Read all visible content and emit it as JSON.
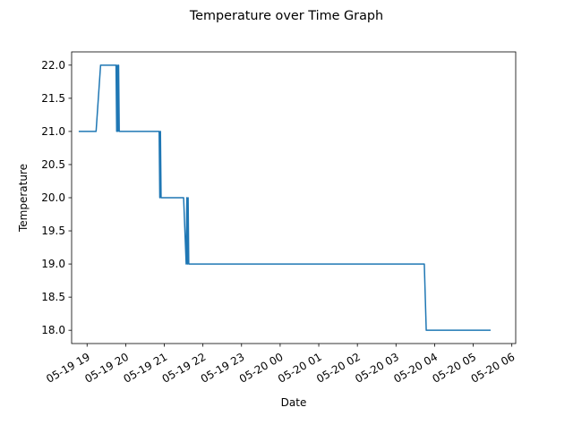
{
  "chart_data": {
    "type": "line",
    "title": "Temperature over Time Graph",
    "xlabel": "Date",
    "ylabel": "Temperature",
    "x_ticks": [
      "05-19 19",
      "05-19 20",
      "05-19 21",
      "05-19 22",
      "05-19 23",
      "05-20 00",
      "05-20 01",
      "05-20 02",
      "05-20 03",
      "05-20 04",
      "05-20 05",
      "05-20 06"
    ],
    "y_ticks": [
      "18.0",
      "18.5",
      "19.0",
      "19.5",
      "20.0",
      "20.5",
      "21.0",
      "21.5",
      "22.0"
    ],
    "xlim": [
      "2019-05-19 18:36",
      "2019-05-20 06:06"
    ],
    "ylim": [
      17.8,
      22.2
    ],
    "grid": false,
    "legend": "none",
    "colors": {
      "line": "#1f77b4"
    },
    "series": [
      {
        "x": [
          "2019-05-19 18:47",
          "2019-05-19 19:14",
          "2019-05-19 19:21",
          "2019-05-19 19:45",
          "2019-05-19 19:46",
          "2019-05-19 19:47",
          "2019-05-19 19:48",
          "2019-05-19 19:49",
          "2019-05-19 19:50",
          "2019-05-19 19:52",
          "2019-05-19 20:52",
          "2019-05-19 20:53",
          "2019-05-19 20:54",
          "2019-05-19 20:55",
          "2019-05-19 20:56",
          "2019-05-19 21:30",
          "2019-05-19 21:34",
          "2019-05-19 21:35",
          "2019-05-19 21:36",
          "2019-05-19 21:37",
          "2019-05-19 21:38",
          "2019-05-20 03:44",
          "2019-05-20 03:47",
          "2019-05-20 05:27"
        ],
        "y": [
          21,
          21,
          22,
          22,
          21,
          22,
          21,
          22,
          21,
          21,
          21,
          20,
          21,
          20,
          20,
          20,
          19,
          20,
          19,
          20,
          19,
          19,
          18,
          18
        ]
      }
    ]
  }
}
